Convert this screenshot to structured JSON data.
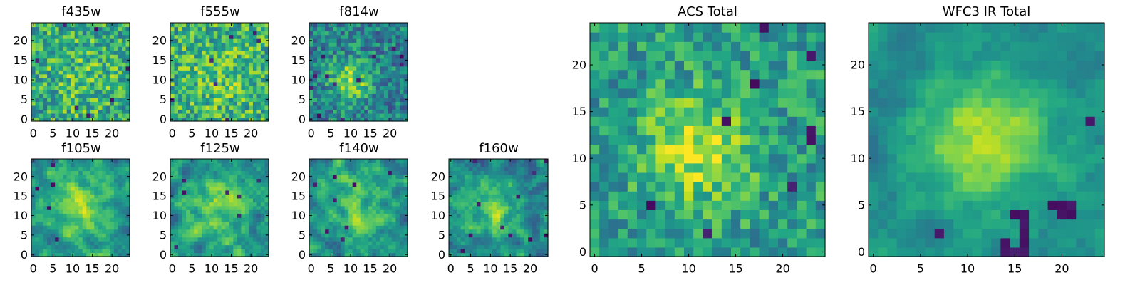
{
  "figure": {
    "background": "#ffffff",
    "colormap": "viridis"
  },
  "chart_data": [
    {
      "type": "heatmap",
      "title": "f435w",
      "grid_size": [
        25,
        25
      ],
      "xticks": [
        0,
        5,
        10,
        15,
        20
      ],
      "yticks": [
        0,
        5,
        10,
        15,
        20
      ],
      "xlim": [
        -0.5,
        24.5
      ],
      "ylim": [
        -0.5,
        24.5
      ],
      "pattern": {
        "seed": 435,
        "center": [
          12,
          11
        ],
        "sigma": 7,
        "peak": 0.1,
        "base": 0.6,
        "noise": 0.26,
        "dark_spots": 8,
        "smooth": 0
      }
    },
    {
      "type": "heatmap",
      "title": "f555w",
      "grid_size": [
        25,
        25
      ],
      "xticks": [
        0,
        5,
        10,
        15,
        20
      ],
      "yticks": [
        0,
        5,
        10,
        15,
        20
      ],
      "xlim": [
        -0.5,
        24.5
      ],
      "ylim": [
        -0.5,
        24.5
      ],
      "pattern": {
        "seed": 555,
        "center": [
          12,
          11
        ],
        "sigma": 7,
        "peak": 0.1,
        "base": 0.62,
        "noise": 0.26,
        "dark_spots": 7,
        "smooth": 0
      }
    },
    {
      "type": "heatmap",
      "title": "f814w",
      "grid_size": [
        25,
        25
      ],
      "xticks": [
        0,
        5,
        10,
        15,
        20
      ],
      "yticks": [
        0,
        5,
        10,
        15,
        20
      ],
      "xlim": [
        -0.5,
        24.5
      ],
      "ylim": [
        -0.5,
        24.5
      ],
      "pattern": {
        "seed": 814,
        "center": [
          10,
          10
        ],
        "sigma": 3.5,
        "peak": 0.4,
        "base": 0.45,
        "noise": 0.22,
        "dark_spots": 12,
        "smooth": 0
      }
    },
    {
      "type": "heatmap",
      "title": "f105w",
      "grid_size": [
        25,
        25
      ],
      "xticks": [
        0,
        5,
        10,
        15,
        20
      ],
      "yticks": [
        0,
        5,
        10,
        15,
        20
      ],
      "xlim": [
        -0.5,
        24.5
      ],
      "ylim": [
        -0.5,
        24.5
      ],
      "pattern": {
        "seed": 105,
        "center": [
          12,
          12
        ],
        "sigma": 6,
        "peak": 0.3,
        "base": 0.5,
        "noise": 0.24,
        "dark_spots": 5,
        "smooth": 1
      }
    },
    {
      "type": "heatmap",
      "title": "f125w",
      "grid_size": [
        25,
        25
      ],
      "xticks": [
        0,
        5,
        10,
        15,
        20
      ],
      "yticks": [
        0,
        5,
        10,
        15,
        20
      ],
      "xlim": [
        -0.5,
        24.5
      ],
      "ylim": [
        -0.5,
        24.5
      ],
      "pattern": {
        "seed": 125,
        "center": [
          11,
          12
        ],
        "sigma": 6,
        "peak": 0.3,
        "base": 0.5,
        "noise": 0.26,
        "dark_spots": 7,
        "smooth": 1
      }
    },
    {
      "type": "heatmap",
      "title": "f140w",
      "grid_size": [
        25,
        25
      ],
      "xticks": [
        0,
        5,
        10,
        15,
        20
      ],
      "yticks": [
        0,
        5,
        10,
        15,
        20
      ],
      "xlim": [
        -0.5,
        24.5
      ],
      "ylim": [
        -0.5,
        24.5
      ],
      "pattern": {
        "seed": 140,
        "center": [
          12,
          12
        ],
        "sigma": 6,
        "peak": 0.3,
        "base": 0.48,
        "noise": 0.26,
        "dark_spots": 8,
        "smooth": 1
      }
    },
    {
      "type": "heatmap",
      "title": "f160w",
      "grid_size": [
        25,
        25
      ],
      "xticks": [
        0,
        5,
        10,
        15,
        20
      ],
      "yticks": [
        0,
        5,
        10,
        15,
        20
      ],
      "xlim": [
        -0.5,
        24.5
      ],
      "ylim": [
        -0.5,
        24.5
      ],
      "pattern": {
        "seed": 160,
        "center": [
          11,
          11
        ],
        "sigma": 5,
        "peak": 0.35,
        "base": 0.45,
        "noise": 0.26,
        "dark_spots": 11,
        "smooth": 1
      }
    },
    {
      "type": "heatmap",
      "title": "ACS Total",
      "grid_size": [
        25,
        25
      ],
      "xticks": [
        0,
        5,
        10,
        15,
        20
      ],
      "yticks": [
        0,
        5,
        10,
        15,
        20
      ],
      "xlim": [
        -0.5,
        24.5
      ],
      "ylim": [
        -0.5,
        24.5
      ],
      "pattern": {
        "seed": 9001,
        "center": [
          11,
          11
        ],
        "sigma": 4,
        "peak": 0.35,
        "base": 0.55,
        "noise": 0.2,
        "dark_spots": 9,
        "smooth": 0
      }
    },
    {
      "type": "heatmap",
      "title": "WFC3 IR Total",
      "grid_size": [
        25,
        25
      ],
      "xticks": [
        0,
        5,
        10,
        15,
        20
      ],
      "yticks": [
        0,
        5,
        10,
        15,
        20
      ],
      "xlim": [
        -0.5,
        24.5
      ],
      "ylim": [
        -0.5,
        24.5
      ],
      "pattern": {
        "seed": 9002,
        "center": [
          12,
          12
        ],
        "sigma": 5,
        "peak": 0.4,
        "base": 0.48,
        "noise": 0.14,
        "dark_spots": 0,
        "smooth": 1,
        "dark_cells": [
          [
            14,
            0
          ],
          [
            14,
            1
          ],
          [
            15,
            0
          ],
          [
            16,
            0
          ],
          [
            16,
            1
          ],
          [
            16,
            2
          ],
          [
            16,
            3
          ],
          [
            15,
            4
          ],
          [
            16,
            4
          ],
          [
            20,
            4
          ],
          [
            20,
            5
          ],
          [
            21,
            4
          ],
          [
            21,
            5
          ],
          [
            19,
            5
          ],
          [
            7,
            2
          ],
          [
            23,
            14
          ]
        ]
      }
    }
  ]
}
